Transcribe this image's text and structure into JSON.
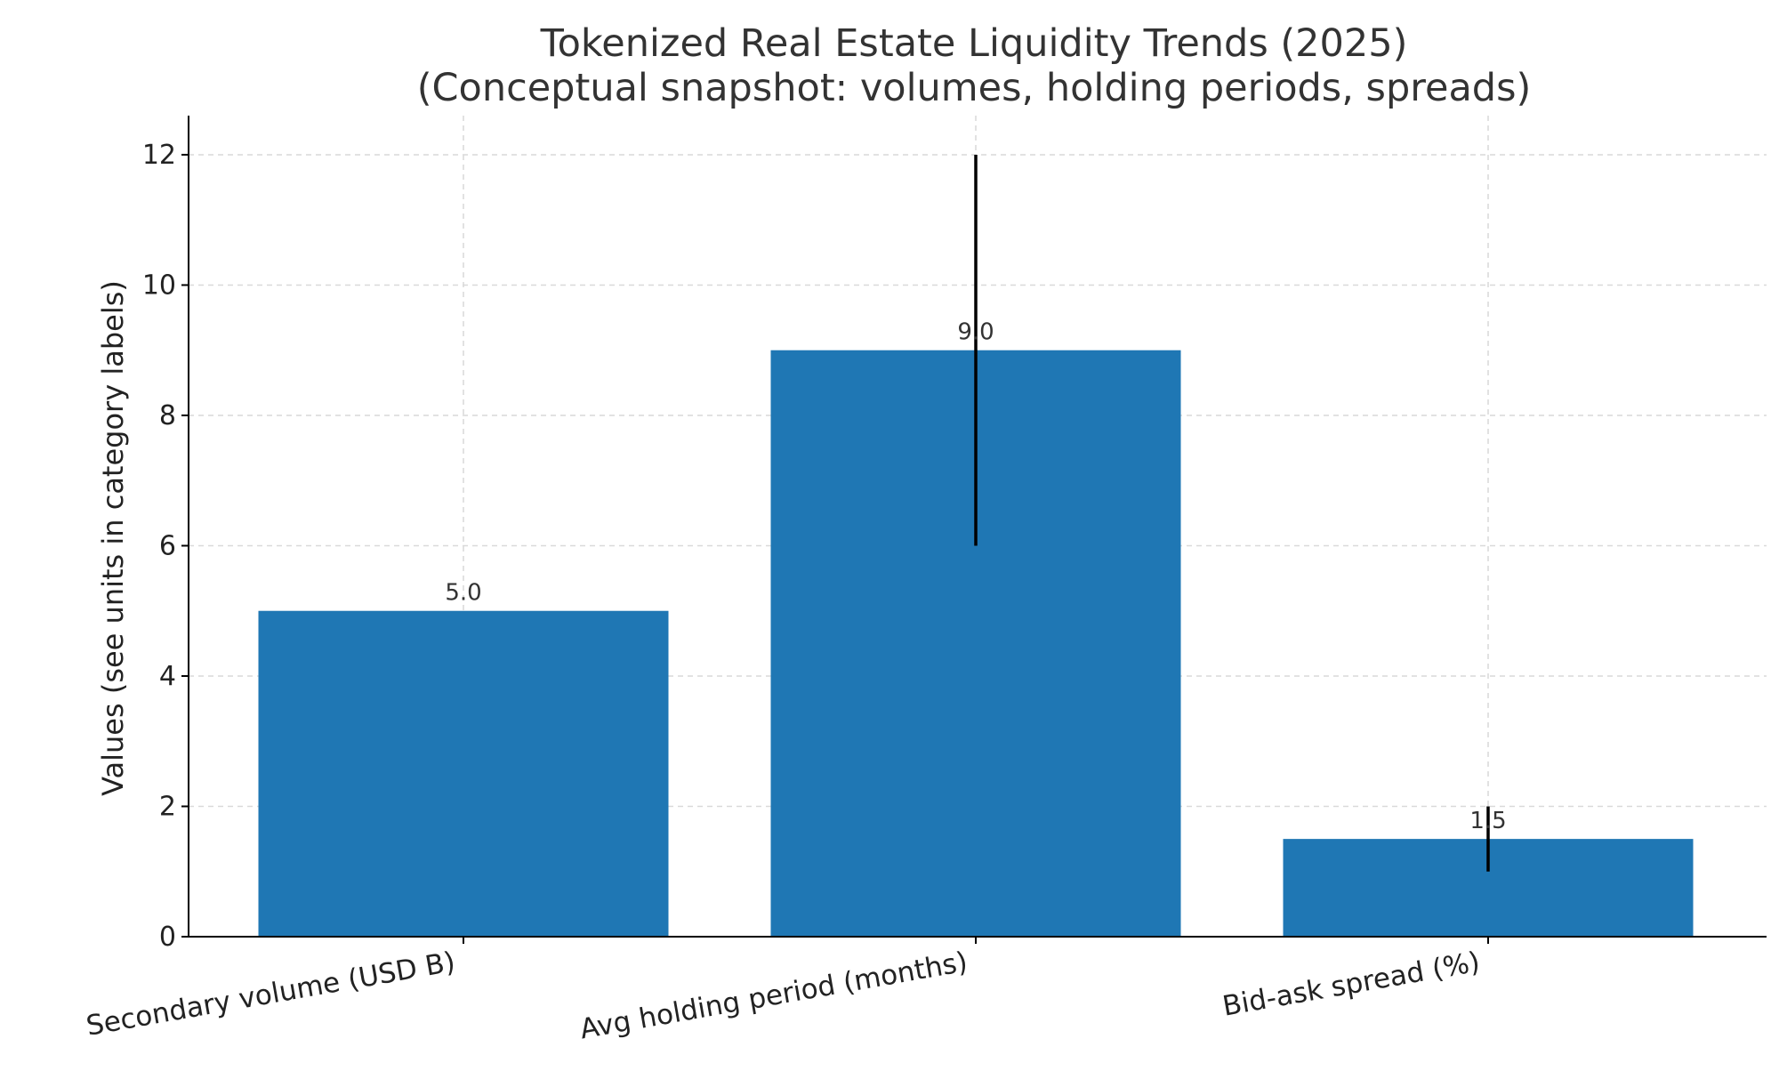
{
  "chart_data": {
    "type": "bar",
    "title": "Tokenized Real Estate Liquidity Trends (2025)",
    "subtitle": "(Conceptual snapshot: volumes, holding periods, spreads)",
    "xlabel": "",
    "ylabel": "Values (see units in category labels)",
    "categories": [
      "Secondary volume (USD B)",
      "Avg holding period (months)",
      "Bid-ask spread (%)"
    ],
    "values": [
      5.0,
      9.0,
      1.5
    ],
    "value_labels": [
      "5.0",
      "9.0",
      "1.5"
    ],
    "error_ranges": [
      null,
      [
        6,
        12
      ],
      [
        1,
        2
      ]
    ],
    "ylim": [
      0,
      12.6
    ],
    "yticks": [
      0,
      2,
      4,
      6,
      8,
      10,
      12
    ],
    "ytick_labels": [
      "0",
      "2",
      "4",
      "6",
      "8",
      "10",
      "12"
    ],
    "grid": true,
    "legend": "none",
    "colors": {
      "bar": "#1f77b4",
      "error_bar": "#000000",
      "grid": "#d9d9d9",
      "axis": "#000000"
    }
  }
}
